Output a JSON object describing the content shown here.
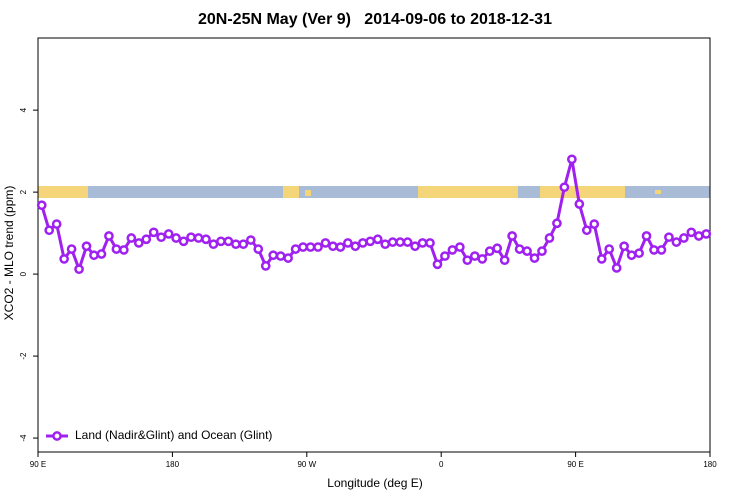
{
  "chart_data": {
    "type": "line",
    "title": "20N-25N May (Ver 9)   2014-09-06 to 2018-12-31",
    "x_label": "Longitude (deg E)",
    "y_label": "XCO2 - MLO trend (ppm)",
    "xlim": [
      90,
      540
    ],
    "ylim": [
      -4.34,
      5.76
    ],
    "xticks": [
      {
        "value": 90,
        "label": "90 E"
      },
      180,
      {
        "value": 270,
        "label": "90 W"
      },
      {
        "value": 360,
        "label": "0"
      },
      {
        "value": 450,
        "label": "90 E"
      },
      {
        "value": 540,
        "label": "180"
      }
    ],
    "yticks": [
      -4,
      -2,
      0,
      2,
      4
    ],
    "legend": "bottom-left",
    "x": [
      92.5,
      97.5,
      102.5,
      107.5,
      112.5,
      117.5,
      122.5,
      127.5,
      132.5,
      137.5,
      142.5,
      147.5,
      152.5,
      157.5,
      162.5,
      167.5,
      172.5,
      177.5,
      182.5,
      187.5,
      192.5,
      197.5,
      202.5,
      207.5,
      212.5,
      217.5,
      222.5,
      227.5,
      232.5,
      237.5,
      242.5,
      247.5,
      252.5,
      257.5,
      262.5,
      267.5,
      272.5,
      277.5,
      282.5,
      287.5,
      292.5,
      297.5,
      302.5,
      307.5,
      312.5,
      317.5,
      322.5,
      327.5,
      332.5,
      337.5,
      342.5,
      347.5,
      352.5,
      357.5,
      362.5,
      367.5,
      372.5,
      377.5,
      382.5,
      387.5,
      392.5,
      397.5,
      402.5,
      407.5,
      412.5,
      417.5,
      422.5,
      427.5,
      432.5,
      437.5,
      442.5,
      447.5,
      452.5,
      457.5,
      462.5,
      467.5,
      472.5,
      477.5,
      482.5,
      487.5,
      492.5,
      497.5,
      502.5,
      507.5,
      512.5,
      517.5,
      522.5,
      527.5,
      532.5,
      537.5
    ],
    "series": [
      {
        "name": "Land (Nadir&Glint) and Ocean (Glint)",
        "color": "#a020f0",
        "values": [
          1.68,
          1.07,
          1.22,
          0.37,
          0.61,
          0.12,
          0.68,
          0.46,
          0.49,
          0.93,
          0.61,
          0.59,
          0.88,
          0.76,
          0.85,
          1.02,
          0.9,
          0.98,
          0.88,
          0.8,
          0.9,
          0.88,
          0.85,
          0.73,
          0.8,
          0.8,
          0.73,
          0.73,
          0.83,
          0.61,
          0.2,
          0.46,
          0.44,
          0.39,
          0.61,
          0.66,
          0.66,
          0.66,
          0.76,
          0.68,
          0.66,
          0.76,
          0.68,
          0.76,
          0.8,
          0.85,
          0.73,
          0.78,
          0.78,
          0.78,
          0.68,
          0.76,
          0.76,
          0.24,
          0.44,
          0.59,
          0.66,
          0.34,
          0.44,
          0.37,
          0.56,
          0.63,
          0.34,
          0.93,
          0.61,
          0.56,
          0.39,
          0.56,
          0.88,
          1.24,
          2.12,
          2.8,
          1.71,
          1.07,
          1.22,
          0.37,
          0.61,
          0.15,
          0.68,
          0.46,
          0.51,
          0.93,
          0.59,
          0.59,
          0.9,
          0.78,
          0.88,
          1.02,
          0.93,
          0.98
        ]
      }
    ]
  }
}
